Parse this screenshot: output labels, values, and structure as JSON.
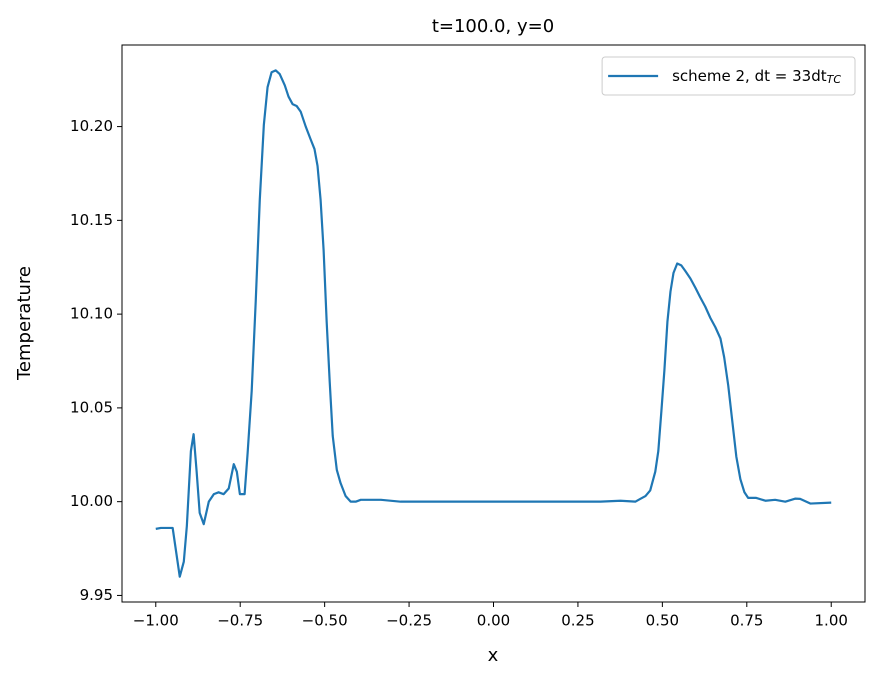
{
  "chart_data": {
    "type": "line",
    "title": "t=100.0, y=0",
    "xlabel": "x",
    "ylabel": "Temperature",
    "xlim": [
      -1.1,
      1.1
    ],
    "ylim": [
      9.9465,
      10.2435
    ],
    "xticks": [
      {
        "value": -1,
        "label": "−1.00"
      },
      {
        "value": -0.75,
        "label": "−0.75"
      },
      {
        "value": -0.5,
        "label": "−0.50"
      },
      {
        "value": -0.25,
        "label": "−0.25"
      },
      {
        "value": 0,
        "label": "0.00"
      },
      {
        "value": 0.25,
        "label": "0.25"
      },
      {
        "value": 0.5,
        "label": "0.50"
      },
      {
        "value": 0.75,
        "label": "0.75"
      },
      {
        "value": 1,
        "label": "1.00"
      }
    ],
    "yticks": [
      9.95,
      {
        "value": 10,
        "label": "10.00"
      },
      10.05,
      {
        "value": 10.1,
        "label": "10.10"
      },
      10.15,
      {
        "value": 10.2,
        "label": "10.20"
      }
    ],
    "legend": "upper right",
    "x": [
      -1.0,
      -0.985,
      -0.95,
      -0.929,
      -0.917,
      -0.908,
      -0.896,
      -0.888,
      -0.879,
      -0.87,
      -0.858,
      -0.843,
      -0.828,
      -0.814,
      -0.799,
      -0.784,
      -0.769,
      -0.76,
      -0.751,
      -0.737,
      -0.728,
      -0.716,
      -0.704,
      -0.692,
      -0.68,
      -0.669,
      -0.657,
      -0.645,
      -0.633,
      -0.618,
      -0.607,
      -0.595,
      -0.583,
      -0.571,
      -0.556,
      -0.541,
      -0.53,
      -0.521,
      -0.512,
      -0.503,
      -0.494,
      -0.485,
      -0.476,
      -0.464,
      -0.453,
      -0.438,
      -0.423,
      -0.408,
      -0.393,
      -0.364,
      -0.334,
      -0.275,
      -0.127,
      0.021,
      0.169,
      0.317,
      0.376,
      0.42,
      0.435,
      0.45,
      0.464,
      0.479,
      0.488,
      0.497,
      0.506,
      0.515,
      0.524,
      0.533,
      0.544,
      0.556,
      0.568,
      0.583,
      0.598,
      0.612,
      0.627,
      0.642,
      0.657,
      0.672,
      0.683,
      0.695,
      0.707,
      0.719,
      0.731,
      0.743,
      0.754,
      0.778,
      0.805,
      0.834,
      0.864,
      0.893,
      0.908,
      0.938,
      1.0
    ],
    "series": [
      {
        "name": "scheme 2, dt = 33dt",
        "name_subscript": "TC",
        "color": "#1f77b4",
        "values": [
          9.9855,
          9.986,
          9.986,
          9.96,
          9.968,
          9.987,
          10.027,
          10.036,
          10.016,
          9.994,
          9.988,
          10.0,
          10.004,
          10.005,
          10.004,
          10.007,
          10.02,
          10.016,
          10.004,
          10.004,
          10.026,
          10.059,
          10.107,
          10.161,
          10.201,
          10.221,
          10.229,
          10.23,
          10.228,
          10.222,
          10.216,
          10.212,
          10.211,
          10.208,
          10.2,
          10.193,
          10.188,
          10.179,
          10.161,
          10.134,
          10.096,
          10.064,
          10.035,
          10.017,
          10.01,
          10.003,
          10.0,
          10.0,
          10.001,
          10.001,
          10.001,
          10.0,
          10.0,
          10.0,
          10.0,
          10.0,
          10.0005,
          10.0,
          10.0015,
          10.003,
          10.006,
          10.016,
          10.027,
          10.048,
          10.07,
          10.096,
          10.112,
          10.122,
          10.127,
          10.126,
          10.123,
          10.119,
          10.114,
          10.109,
          10.104,
          10.098,
          10.093,
          10.087,
          10.077,
          10.062,
          10.043,
          10.024,
          10.012,
          10.005,
          10.002,
          10.002,
          10.0005,
          10.001,
          10.0,
          10.0016,
          10.0015,
          9.999,
          9.9995
        ]
      }
    ]
  }
}
